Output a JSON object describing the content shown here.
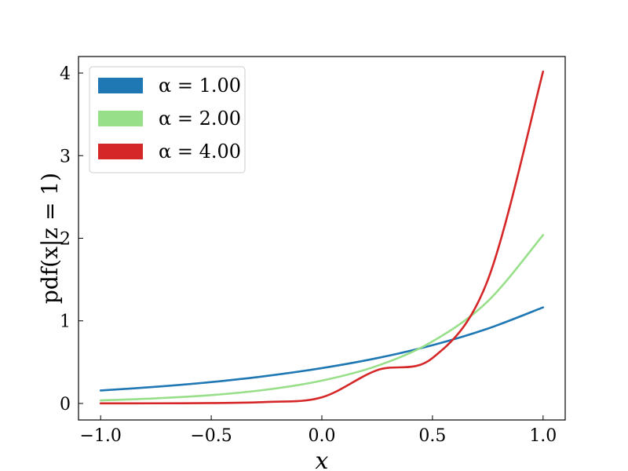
{
  "chart_data": {
    "type": "line",
    "xlabel": "x",
    "ylabel": "pdf(x|z = 1)",
    "xlim": [
      -1.1,
      1.1
    ],
    "ylim": [
      -0.2,
      4.2
    ],
    "xticks": [
      -1.0,
      -0.5,
      0.0,
      0.5,
      1.0
    ],
    "xtick_labels": [
      "−1.0",
      "−0.5",
      "0.0",
      "0.5",
      "1.0"
    ],
    "yticks": [
      0,
      1,
      2,
      3,
      4
    ],
    "ytick_labels": [
      "0",
      "1",
      "2",
      "3",
      "4"
    ],
    "grid": false,
    "legend_position": "top-left",
    "series": [
      {
        "name": "α = 1.00",
        "color": "#1f77b4",
        "x": [
          -1.0,
          -0.75,
          -0.5,
          -0.25,
          0.0,
          0.25,
          0.5,
          0.75,
          1.0
        ],
        "y": [
          0.157,
          0.202,
          0.259,
          0.333,
          0.428,
          0.549,
          0.705,
          0.906,
          1.163
        ]
      },
      {
        "name": "α = 2.00",
        "color": "#98df8a",
        "x": [
          -1.0,
          -0.75,
          -0.5,
          -0.25,
          0.0,
          0.25,
          0.5,
          0.75,
          1.0
        ],
        "y": [
          0.037,
          0.062,
          0.101,
          0.167,
          0.276,
          0.455,
          0.75,
          1.237,
          2.039
        ]
      },
      {
        "name": "α = 4.00",
        "color": "#d62728",
        "x": [
          -1.0,
          -0.75,
          -0.5,
          -0.25,
          0.0,
          0.25,
          0.5,
          0.75,
          1.0
        ],
        "y": [
          0.001,
          0.002,
          0.005,
          0.018,
          0.074,
          0.403,
          0.55,
          1.493,
          4.018
        ]
      }
    ]
  }
}
